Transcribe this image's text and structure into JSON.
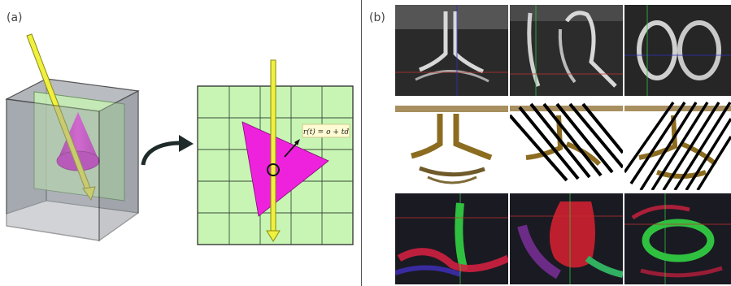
{
  "panel_a": {
    "label": "(a)",
    "ray_equation": "r(t) = o + td"
  },
  "panel_b": {
    "label": "(b)"
  },
  "colors": {
    "ray": "#f0f040",
    "ray_stroke": "#8a8a10",
    "cone": "#ee22dd",
    "slice": "#c8f5b4",
    "box": "#9aa0a8"
  }
}
